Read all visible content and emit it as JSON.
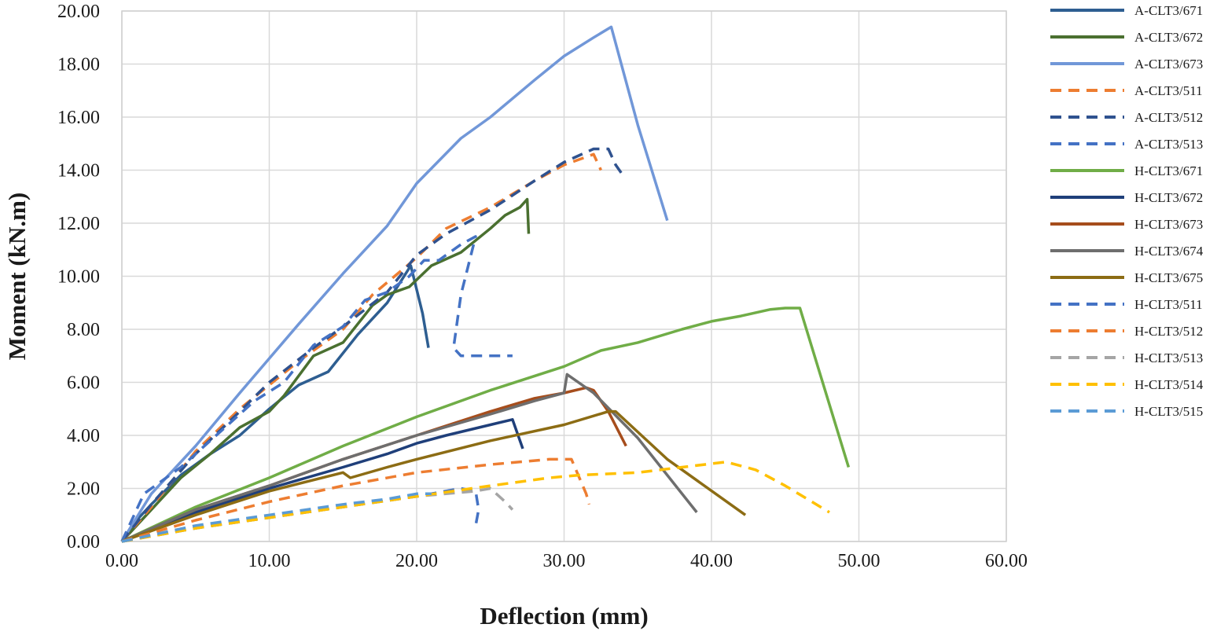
{
  "chart_data": {
    "type": "line",
    "title": "",
    "xlabel": "Deflection (mm)",
    "ylabel": "Moment (kN.m)",
    "xlim": [
      0,
      60
    ],
    "ylim": [
      0,
      20
    ],
    "x_ticks": [
      0,
      10,
      20,
      30,
      40,
      50,
      60
    ],
    "y_ticks": [
      0,
      2,
      4,
      6,
      8,
      10,
      12,
      14,
      16,
      18,
      20
    ],
    "x_tick_labels": [
      "0.00",
      "10.00",
      "20.00",
      "30.00",
      "40.00",
      "50.00",
      "60.00"
    ],
    "y_tick_labels": [
      "0.00",
      "2.00",
      "4.00",
      "6.00",
      "8.00",
      "10.00",
      "12.00",
      "14.00",
      "16.00",
      "18.00",
      "20.00"
    ],
    "grid": true,
    "legend_position": "right",
    "series": [
      {
        "name": "A-CLT3/671",
        "color": "#2e5e91",
        "dash": "solid",
        "points": [
          [
            0,
            0
          ],
          [
            1,
            0.8
          ],
          [
            2,
            1.4
          ],
          [
            4,
            2.5
          ],
          [
            6,
            3.3
          ],
          [
            8,
            4.0
          ],
          [
            10,
            5.0
          ],
          [
            12,
            5.9
          ],
          [
            14,
            6.4
          ],
          [
            16,
            7.8
          ],
          [
            18,
            9.0
          ],
          [
            19.6,
            10.4
          ],
          [
            20.4,
            8.6
          ],
          [
            20.8,
            7.3
          ]
        ]
      },
      {
        "name": "A-CLT3/672",
        "color": "#4a7030",
        "dash": "solid",
        "points": [
          [
            0,
            0
          ],
          [
            2,
            1.2
          ],
          [
            4,
            2.4
          ],
          [
            6,
            3.3
          ],
          [
            8,
            4.3
          ],
          [
            10,
            4.9
          ],
          [
            11,
            5.5
          ],
          [
            13,
            7.0
          ],
          [
            15,
            7.5
          ],
          [
            17,
            8.9
          ],
          [
            18,
            9.3
          ],
          [
            19.5,
            9.6
          ],
          [
            21,
            10.4
          ],
          [
            23,
            10.9
          ],
          [
            25,
            11.8
          ],
          [
            26,
            12.3
          ],
          [
            27,
            12.6
          ],
          [
            27.5,
            12.9
          ],
          [
            27.6,
            11.6
          ]
        ]
      },
      {
        "name": "A-CLT3/673",
        "color": "#7197d8",
        "dash": "solid",
        "points": [
          [
            0,
            0
          ],
          [
            2,
            1.8
          ],
          [
            5,
            3.6
          ],
          [
            8,
            5.6
          ],
          [
            10,
            6.9
          ],
          [
            12,
            8.2
          ],
          [
            15,
            10.1
          ],
          [
            18,
            11.9
          ],
          [
            20,
            13.5
          ],
          [
            23,
            15.2
          ],
          [
            25,
            16.0
          ],
          [
            28,
            17.4
          ],
          [
            30,
            18.3
          ],
          [
            32,
            19.0
          ],
          [
            33.2,
            19.4
          ],
          [
            35,
            15.7
          ],
          [
            37,
            12.1
          ]
        ]
      },
      {
        "name": "A-CLT3/511",
        "color": "#ed7d31",
        "dash": "dashed",
        "points": [
          [
            0,
            0
          ],
          [
            2,
            1.3
          ],
          [
            5,
            3.4
          ],
          [
            8,
            5.0
          ],
          [
            10,
            5.9
          ],
          [
            12,
            6.8
          ],
          [
            15,
            8.0
          ],
          [
            17,
            9.3
          ],
          [
            20,
            10.7
          ],
          [
            22,
            11.8
          ],
          [
            25,
            12.6
          ],
          [
            28,
            13.6
          ],
          [
            30,
            14.2
          ],
          [
            32,
            14.6
          ],
          [
            32.5,
            14.0
          ]
        ]
      },
      {
        "name": "A-CLT3/512",
        "color": "#2f528f",
        "dash": "dashed",
        "points": [
          [
            0,
            0
          ],
          [
            2,
            1.4
          ],
          [
            5,
            3.3
          ],
          [
            8,
            4.9
          ],
          [
            10,
            6.0
          ],
          [
            13,
            7.3
          ],
          [
            15,
            8.1
          ],
          [
            18,
            9.4
          ],
          [
            20,
            10.8
          ],
          [
            22,
            11.6
          ],
          [
            25,
            12.5
          ],
          [
            28,
            13.6
          ],
          [
            30,
            14.3
          ],
          [
            32,
            14.8
          ],
          [
            33,
            14.8
          ],
          [
            33.5,
            14.2
          ],
          [
            34,
            13.8
          ]
        ]
      },
      {
        "name": "A-CLT3/513",
        "color": "#4472c4",
        "dash": "dashed",
        "points": [
          [
            0,
            0
          ],
          [
            1.5,
            1.8
          ],
          [
            4,
            2.8
          ],
          [
            7,
            4.3
          ],
          [
            9,
            5.3
          ],
          [
            11,
            6.0
          ],
          [
            13,
            7.4
          ],
          [
            15,
            8.1
          ],
          [
            16.5,
            9.1
          ],
          [
            18,
            9.4
          ],
          [
            19.5,
            10.0
          ],
          [
            20.5,
            10.6
          ],
          [
            21.5,
            10.6
          ],
          [
            23,
            11.2
          ],
          [
            24,
            11.5
          ],
          [
            23,
            9.3
          ],
          [
            22.5,
            7.3
          ],
          [
            23,
            7.0
          ],
          [
            24,
            7.0
          ],
          [
            26,
            7.0
          ],
          [
            26.5,
            7.0
          ]
        ]
      },
      {
        "name": "H-CLT3/671",
        "color": "#70ad47",
        "dash": "solid",
        "points": [
          [
            0,
            0
          ],
          [
            5,
            1.3
          ],
          [
            10,
            2.4
          ],
          [
            15,
            3.6
          ],
          [
            20,
            4.7
          ],
          [
            25,
            5.7
          ],
          [
            30,
            6.6
          ],
          [
            32.5,
            7.2
          ],
          [
            35,
            7.5
          ],
          [
            38,
            8.0
          ],
          [
            40,
            8.3
          ],
          [
            42,
            8.5
          ],
          [
            44,
            8.75
          ],
          [
            45,
            8.8
          ],
          [
            46,
            8.8
          ],
          [
            49.3,
            2.8
          ]
        ]
      },
      {
        "name": "H-CLT3/672",
        "color": "#1f3f7a",
        "dash": "solid",
        "points": [
          [
            0,
            0
          ],
          [
            5,
            1.1
          ],
          [
            10,
            2.0
          ],
          [
            15,
            2.8
          ],
          [
            18,
            3.3
          ],
          [
            20,
            3.7
          ],
          [
            22,
            4.0
          ],
          [
            25,
            4.4
          ],
          [
            26.5,
            4.6
          ],
          [
            27.2,
            3.5
          ]
        ]
      },
      {
        "name": "H-CLT3/673",
        "color": "#a64d1c",
        "dash": "solid",
        "points": [
          [
            0,
            0
          ],
          [
            5,
            1.2
          ],
          [
            10,
            2.1
          ],
          [
            15,
            3.1
          ],
          [
            20,
            4.0
          ],
          [
            25,
            4.9
          ],
          [
            28,
            5.4
          ],
          [
            30,
            5.6
          ],
          [
            31.5,
            5.8
          ],
          [
            32,
            5.7
          ],
          [
            33,
            4.9
          ],
          [
            34.2,
            3.6
          ]
        ]
      },
      {
        "name": "H-CLT3/674",
        "color": "#6e6e6e",
        "dash": "solid",
        "points": [
          [
            0,
            0
          ],
          [
            5,
            1.2
          ],
          [
            10,
            2.1
          ],
          [
            15,
            3.1
          ],
          [
            20,
            4.0
          ],
          [
            25,
            4.8
          ],
          [
            28,
            5.3
          ],
          [
            30,
            5.6
          ],
          [
            30.2,
            6.3
          ],
          [
            32,
            5.6
          ],
          [
            35,
            3.9
          ],
          [
            39,
            1.1
          ]
        ]
      },
      {
        "name": "H-CLT3/675",
        "color": "#8c6c14",
        "dash": "solid",
        "points": [
          [
            0,
            0
          ],
          [
            5,
            1.0
          ],
          [
            10,
            1.9
          ],
          [
            15,
            2.6
          ],
          [
            15.5,
            2.4
          ],
          [
            18,
            2.8
          ],
          [
            20,
            3.1
          ],
          [
            25,
            3.8
          ],
          [
            30,
            4.4
          ],
          [
            33,
            4.9
          ],
          [
            33.5,
            4.9
          ],
          [
            37,
            3.1
          ],
          [
            42.3,
            1.0
          ]
        ]
      },
      {
        "name": "H-CLT3/511",
        "color": "#4472c4",
        "dash": "dashed",
        "points": [
          [
            0,
            0
          ],
          [
            5,
            0.5
          ],
          [
            10,
            0.9
          ],
          [
            15,
            1.3
          ],
          [
            20,
            1.7
          ],
          [
            23,
            2.0
          ],
          [
            24,
            1.9
          ],
          [
            24.2,
            1.2
          ],
          [
            24,
            0.6
          ]
        ]
      },
      {
        "name": "H-CLT3/512",
        "color": "#ed7d31",
        "dash": "dashed",
        "points": [
          [
            0,
            0
          ],
          [
            5,
            0.8
          ],
          [
            10,
            1.5
          ],
          [
            15,
            2.1
          ],
          [
            20,
            2.6
          ],
          [
            25,
            2.9
          ],
          [
            29,
            3.1
          ],
          [
            30.5,
            3.1
          ],
          [
            31.5,
            1.8
          ],
          [
            31.7,
            1.4
          ]
        ]
      },
      {
        "name": "H-CLT3/513",
        "color": "#a5a5a5",
        "dash": "dashed",
        "points": [
          [
            0,
            0
          ],
          [
            5,
            0.5
          ],
          [
            10,
            0.9
          ],
          [
            15,
            1.3
          ],
          [
            20,
            1.7
          ],
          [
            24,
            1.9
          ],
          [
            25,
            2.0
          ],
          [
            26,
            1.5
          ],
          [
            26.5,
            1.2
          ]
        ]
      },
      {
        "name": "H-CLT3/514",
        "color": "#ffc000",
        "dash": "dashed",
        "points": [
          [
            0,
            0
          ],
          [
            5,
            0.5
          ],
          [
            10,
            0.9
          ],
          [
            15,
            1.3
          ],
          [
            20,
            1.7
          ],
          [
            25,
            2.1
          ],
          [
            29,
            2.4
          ],
          [
            31,
            2.5
          ],
          [
            35,
            2.6
          ],
          [
            38,
            2.8
          ],
          [
            41,
            3.0
          ],
          [
            43,
            2.7
          ],
          [
            45,
            2.1
          ],
          [
            48,
            1.1
          ]
        ]
      },
      {
        "name": "H-CLT3/515",
        "color": "#5b9bd5",
        "dash": "dashed",
        "points": [
          [
            0,
            0
          ],
          [
            5,
            0.6
          ],
          [
            10,
            1.0
          ],
          [
            15,
            1.4
          ],
          [
            18,
            1.6
          ],
          [
            20,
            1.8
          ],
          [
            21,
            1.8
          ]
        ]
      }
    ]
  }
}
